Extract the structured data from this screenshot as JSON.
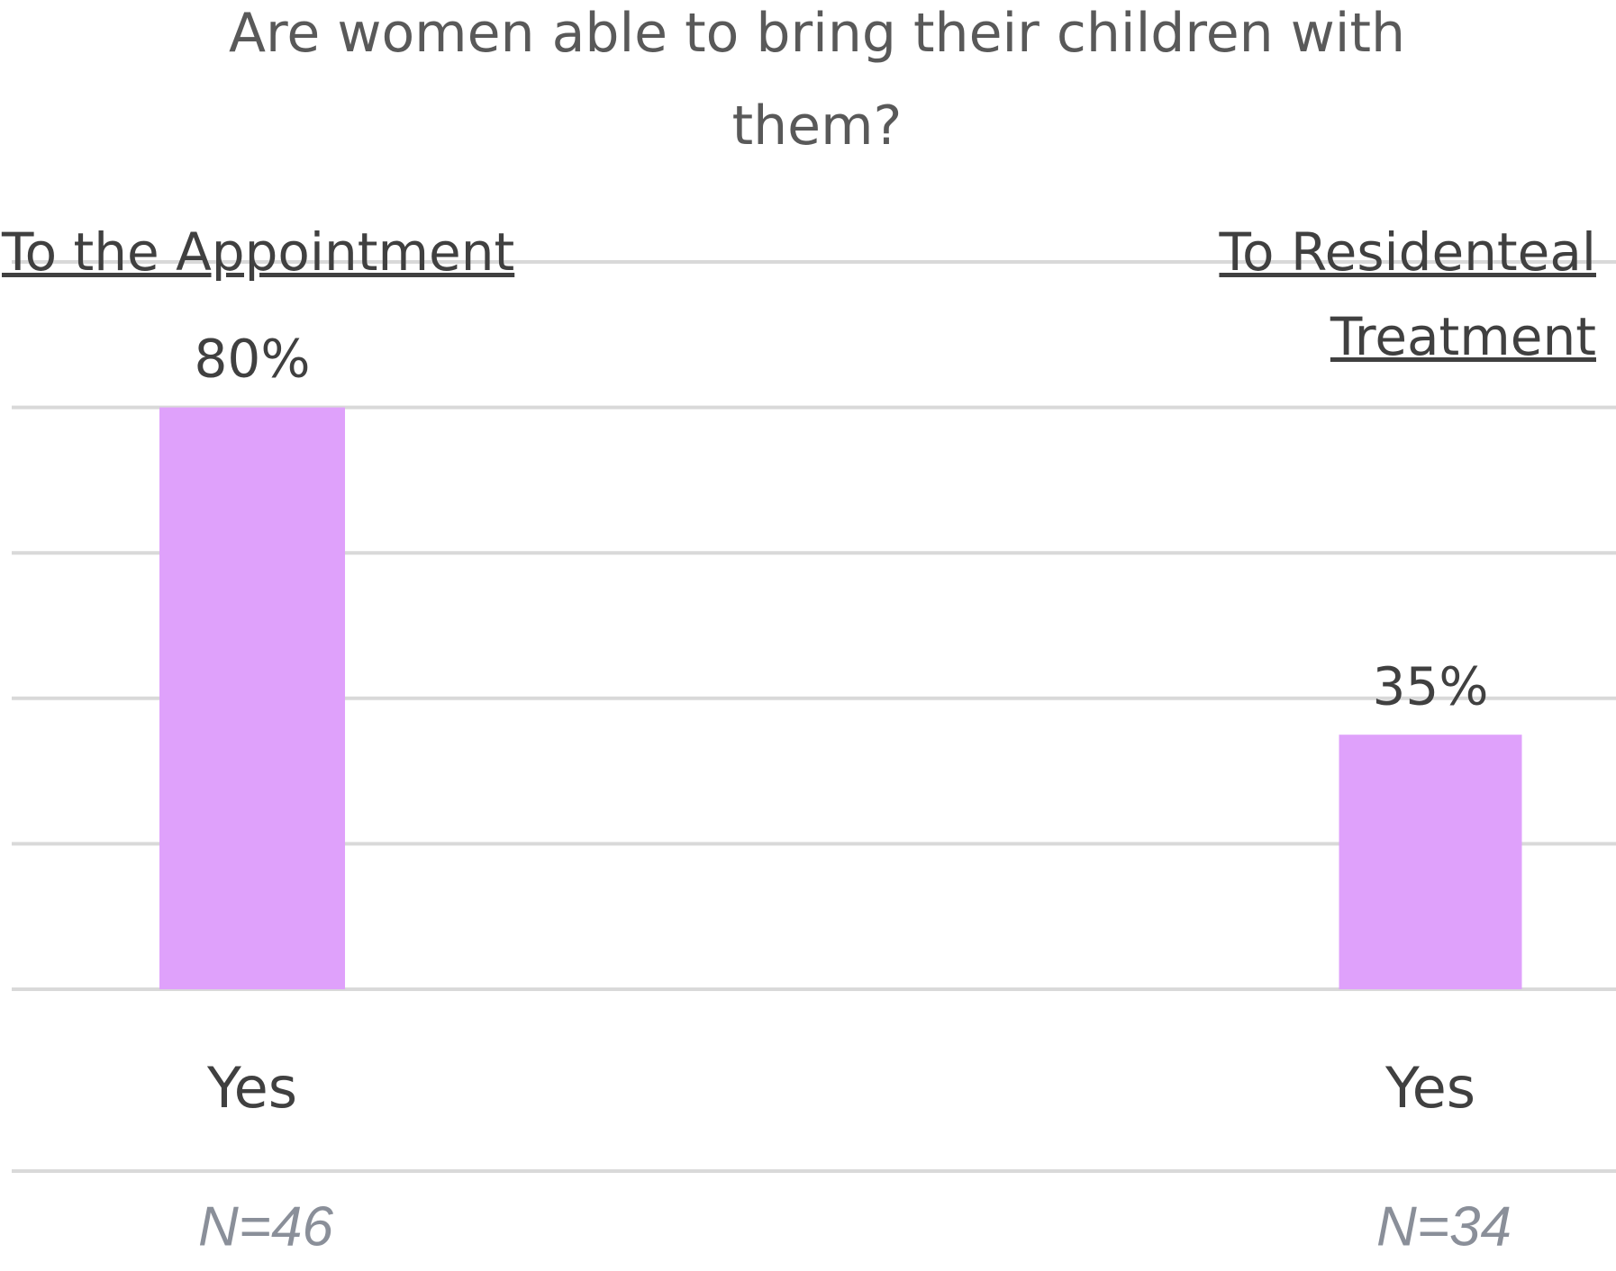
{
  "chart_data": {
    "type": "bar",
    "title": "Are women able to bring their children with them?",
    "groups": [
      "To the Appointment",
      "To Residenteal Treatment"
    ],
    "categories": [
      "Yes",
      "Yes"
    ],
    "values": [
      80,
      35
    ],
    "value_labels": [
      "80%",
      "35%"
    ],
    "sample_sizes": [
      "N=46",
      "N=34"
    ],
    "color": "#dfa1fb",
    "ylim": [
      0,
      100
    ],
    "yticks": [
      0,
      20,
      40,
      60,
      80,
      100
    ],
    "grid": true
  }
}
